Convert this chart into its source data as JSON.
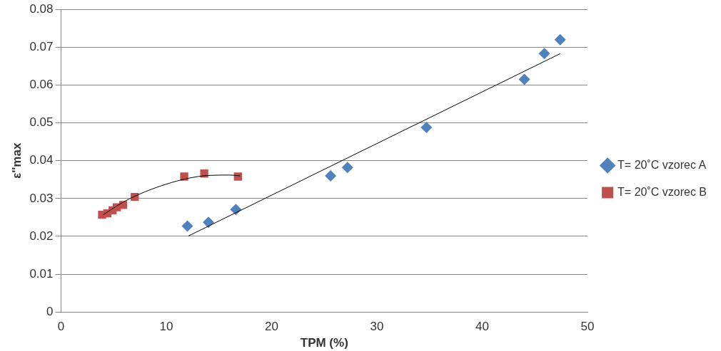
{
  "chart_data": {
    "type": "scatter",
    "xlabel": "TPM (%)",
    "ylabel": "ε''max",
    "xlim": [
      0,
      50
    ],
    "xticks": [
      0,
      10,
      20,
      30,
      40,
      50
    ],
    "ylim": [
      0,
      0.08
    ],
    "yticks": [
      0,
      0.01,
      0.02,
      0.03,
      0.04,
      0.05,
      0.06,
      0.07,
      0.08
    ],
    "grid": "y",
    "legend": "right",
    "series": [
      {
        "name": "T= 20˚C vzorec A",
        "color": "#4f81bd",
        "marker": "diamond",
        "x": [
          12.0,
          14.0,
          16.6,
          25.6,
          27.2,
          34.7,
          44.0,
          45.9,
          47.4
        ],
        "values": [
          0.0227,
          0.0237,
          0.0271,
          0.036,
          0.0382,
          0.0488,
          0.0615,
          0.0683,
          0.072
        ]
      },
      {
        "name": "T= 20˚C vzorec B",
        "color": "#c0504d",
        "marker": "square",
        "x": [
          3.9,
          4.4,
          4.9,
          5.3,
          5.9,
          7.0,
          11.7,
          13.6,
          16.8
        ],
        "values": [
          0.0257,
          0.0261,
          0.0269,
          0.0277,
          0.0283,
          0.0304,
          0.0358,
          0.0366,
          0.0358
        ]
      },
      {
        "type": "line",
        "color": "#000000",
        "marker": "none",
        "x": [
          12.1,
          47.4
        ],
        "values": [
          0.0201,
          0.0683
        ]
      },
      {
        "type": "line",
        "color": "#000000",
        "marker": "none",
        "x": [
          4,
          6,
          8,
          10,
          12,
          14,
          16,
          17
        ],
        "values": [
          0.0257,
          0.0292,
          0.0318,
          0.0338,
          0.0353,
          0.0361,
          0.0362,
          0.036
        ]
      }
    ]
  }
}
